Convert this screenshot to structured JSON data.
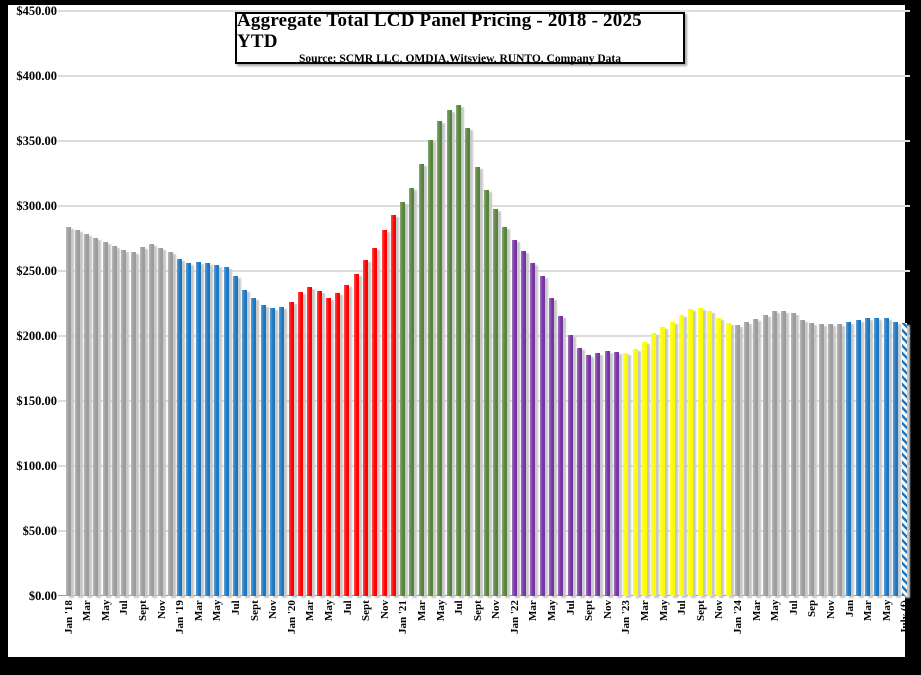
{
  "window": {
    "background": "#000000",
    "panel_background": "#ffffff"
  },
  "chart": {
    "title": "Aggregate Total LCD Panel Pricing - 2018 - 2025 YTD",
    "subtitle": "Source: SCMR LLC, OMDIA,Witsview, RUNTO, Company Data"
  },
  "chart_data": {
    "type": "bar",
    "title": "Aggregate Total LCD Panel Pricing - 2018 - 2025 YTD",
    "subtitle": "Source: SCMR LLC, OMDIA,Witsview, RUNTO, Company Data",
    "unit": "USD per panel (aggregate total)",
    "ylim": [
      0,
      450
    ],
    "ytick_step": 50,
    "ytick_labels": [
      "$450.00",
      "$400.00",
      "$350.00",
      "$300.00",
      "$250.00",
      "$200.00",
      "$150.00",
      "$100.00",
      "$50.00",
      "$0.00"
    ],
    "grid": "horizontal-only",
    "legend": "none",
    "x_unit": "months, Jan 2018 - Jul 2025 (labels every 2nd month)",
    "xtick_labels": [
      "Jan '18",
      "Mar",
      "May",
      "Jul",
      "Sept",
      "Nov",
      "Jan '19",
      "Mar",
      "May",
      "Jul",
      "Sept",
      "Nov",
      "Jan '20",
      "Mar",
      "May",
      "Jul",
      "Sept",
      "Nov",
      "Jan '21",
      "Mar",
      "May",
      "Jul",
      "Sept",
      "Nov",
      "Jan '22",
      "Mar",
      "May",
      "Jul",
      "Sept",
      "Nov",
      "Jan '23",
      "Mar",
      "May",
      "Jul",
      "Sept",
      "Nov",
      "Jan '24",
      "Mar",
      "May",
      "Jul",
      "Sep",
      "Nov",
      "Jan",
      "Mar",
      "May",
      "July (f)"
    ],
    "series": [
      {
        "name": "2018",
        "color": "#9c9c9c",
        "values": [
          284,
          281.5,
          278.5,
          275.5,
          272.5,
          269,
          266,
          264.5,
          268.5,
          271,
          268,
          265
        ]
      },
      {
        "name": "2019",
        "color": "#1c77c3",
        "values": [
          259,
          256.5,
          257,
          256,
          255,
          253,
          246,
          235.5,
          229,
          224,
          221.5,
          222
        ]
      },
      {
        "name": "2020",
        "color": "#fe0000",
        "values": [
          226.5,
          234,
          238,
          235,
          229.5,
          233,
          239,
          248,
          258.5,
          268,
          281.5,
          293
        ]
      },
      {
        "name": "2021",
        "color": "#56843a",
        "values": [
          303,
          314,
          332,
          351,
          365.5,
          373.5,
          378,
          360,
          330,
          312,
          298,
          283.5
        ]
      },
      {
        "name": "2022",
        "color": "#7633a3",
        "values": [
          274,
          265.5,
          256.5,
          246,
          229,
          215.5,
          201,
          190.5,
          185.5,
          187,
          188.5,
          188
        ]
      },
      {
        "name": "2023",
        "color": "#fcfc00",
        "values": [
          187,
          190,
          195.5,
          202,
          207,
          211,
          216.5,
          220.5,
          221.5,
          219.5,
          213.5,
          210
        ]
      },
      {
        "name": "2024",
        "color": "#9c9c9c",
        "values": [
          208.5,
          210.5,
          213,
          216,
          219,
          219.5,
          218,
          212.5,
          210,
          209.5,
          209,
          209
        ]
      },
      {
        "name": "2025",
        "color": "#1c77c3",
        "last_bar_hatched": true,
        "values": [
          211,
          212.5,
          213.5,
          214,
          213.5,
          210.5,
          210
        ]
      }
    ]
  }
}
